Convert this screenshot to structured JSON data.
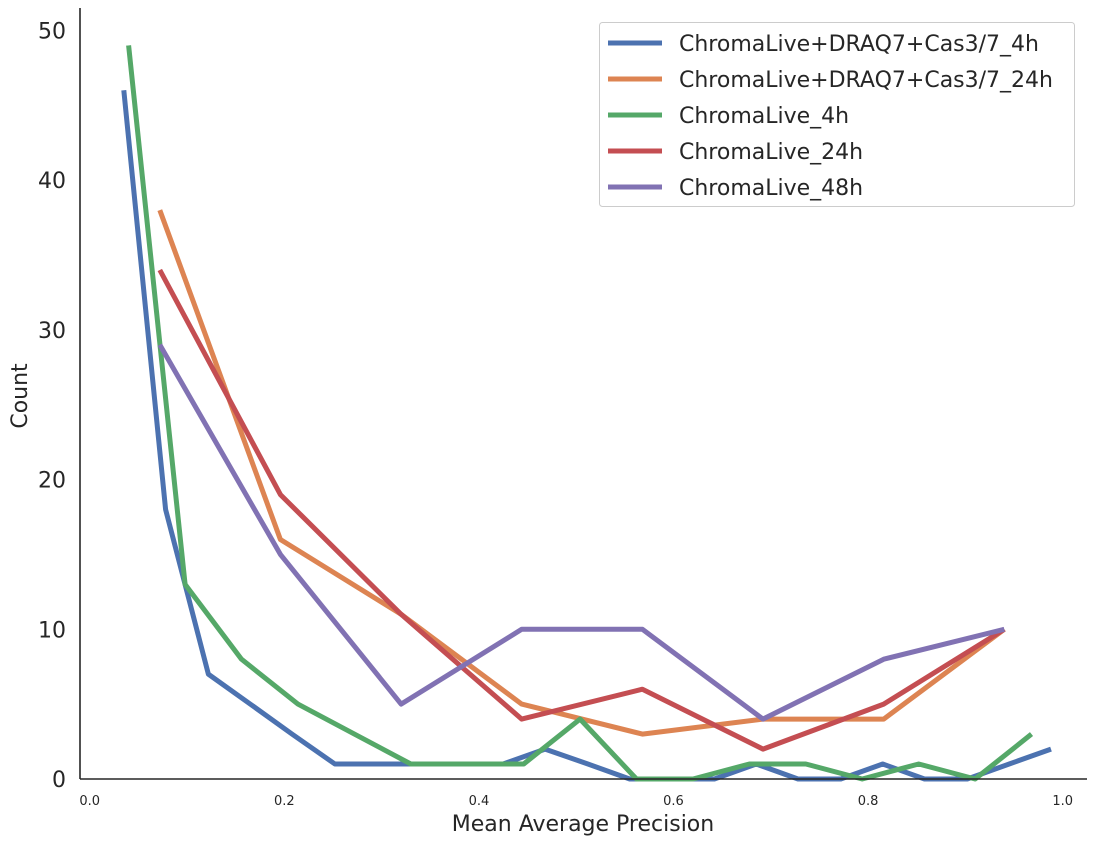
{
  "chart_data": {
    "type": "line",
    "title": "",
    "xlabel": "Mean Average Precision",
    "ylabel": "Count",
    "xlim": [
      -0.01,
      1.025
    ],
    "ylim": [
      0,
      51.5
    ],
    "x_ticks": [
      0.0,
      0.2,
      0.4,
      0.6,
      0.8,
      1.0
    ],
    "x_tick_labels": [
      "0.0",
      "0.2",
      "0.4",
      "0.6",
      "0.8",
      "1.0"
    ],
    "y_ticks": [
      0,
      10,
      20,
      30,
      40,
      50
    ],
    "y_tick_labels": [
      "0",
      "10",
      "20",
      "30",
      "40",
      "50"
    ],
    "grid": false,
    "legend_position": "top-right",
    "series": [
      {
        "name": "ChromaLive+DRAQ7+Cas3/7_4h",
        "color": "#4c72b0",
        "x": [
          0.035,
          0.078,
          0.122,
          0.165,
          0.208,
          0.252,
          0.295,
          0.338,
          0.382,
          0.425,
          0.468,
          0.512,
          0.555,
          0.598,
          0.642,
          0.685,
          0.728,
          0.772,
          0.815,
          0.858,
          0.902,
          0.945,
          0.988
        ],
        "y": [
          46,
          18,
          7,
          5,
          3,
          1,
          1,
          1,
          1,
          1,
          2,
          1,
          0,
          0,
          0,
          1,
          0,
          0,
          1,
          0,
          0,
          1,
          2
        ]
      },
      {
        "name": "ChromaLive+DRAQ7+Cas3/7_24h",
        "color": "#dd8452",
        "x": [
          0.072,
          0.196,
          0.32,
          0.444,
          0.568,
          0.692,
          0.816,
          0.94
        ],
        "y": [
          38,
          16,
          11,
          5,
          3,
          4,
          4,
          10
        ]
      },
      {
        "name": "ChromaLive_4h",
        "color": "#55a868",
        "x": [
          0.04,
          0.098,
          0.156,
          0.214,
          0.272,
          0.33,
          0.388,
          0.446,
          0.504,
          0.562,
          0.62,
          0.678,
          0.736,
          0.794,
          0.852,
          0.91,
          0.968
        ],
        "y": [
          49,
          13,
          8,
          5,
          3,
          1,
          1,
          1,
          4,
          0,
          0,
          1,
          1,
          0,
          1,
          0,
          3
        ]
      },
      {
        "name": "ChromaLive_24h",
        "color": "#c44e52",
        "x": [
          0.072,
          0.196,
          0.32,
          0.444,
          0.568,
          0.692,
          0.816,
          0.94
        ],
        "y": [
          34,
          19,
          11,
          4,
          6,
          2,
          5,
          10
        ]
      },
      {
        "name": "ChromaLive_48h",
        "color": "#8172b3",
        "x": [
          0.072,
          0.196,
          0.32,
          0.444,
          0.568,
          0.692,
          0.816,
          0.94
        ],
        "y": [
          29,
          15,
          5,
          10,
          10,
          4,
          8,
          10
        ]
      }
    ]
  }
}
